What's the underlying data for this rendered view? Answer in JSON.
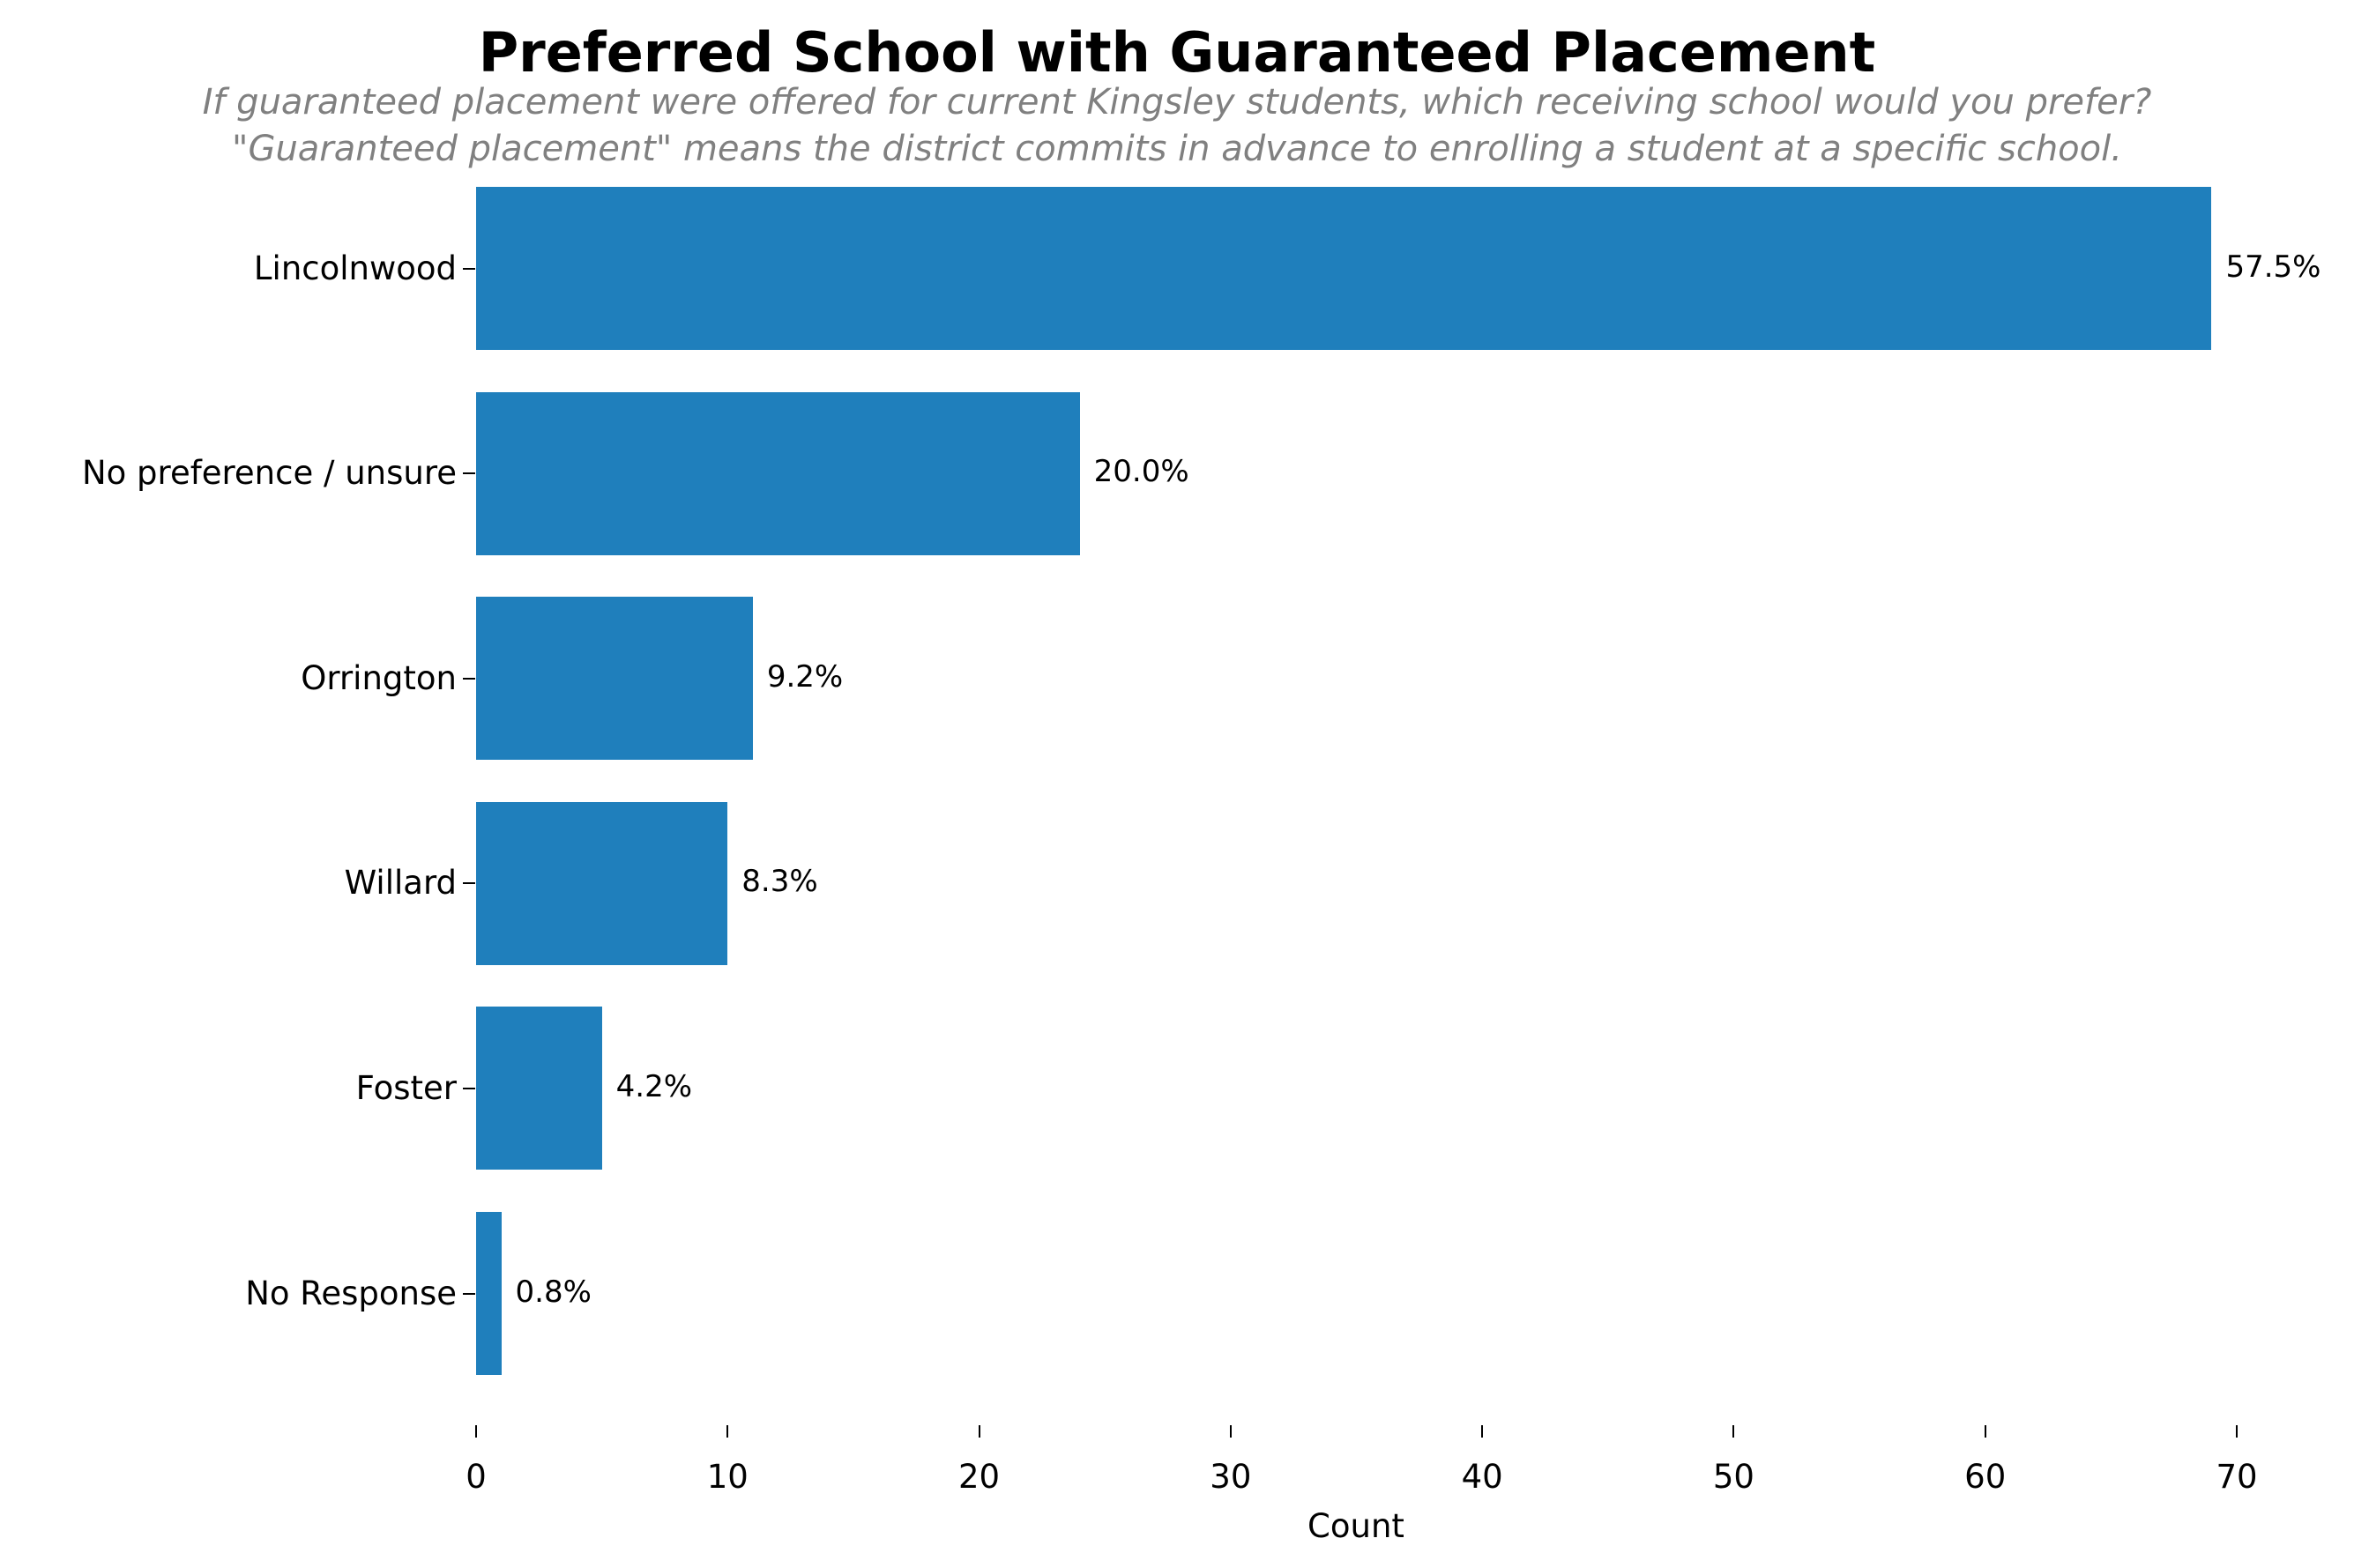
{
  "title": "Preferred School with Guaranteed Placement",
  "subtitle_lines": [
    "If guaranteed placement were offered for current Kingsley students, which receiving school would you prefer?",
    "\"Guaranteed placement\" means the district commits in advance to enrolling a student at a specific school."
  ],
  "colors": {
    "bar": "#1f7fbc",
    "subtitle": "#808080"
  },
  "chart_data": {
    "type": "bar",
    "orientation": "horizontal",
    "title": "Preferred School with Guaranteed Placement",
    "subtitle": "If guaranteed placement were offered for current Kingsley students, which receiving school would you prefer? \"Guaranteed placement\" means the district commits in advance to enrolling a student at a specific school.",
    "categories": [
      "Lincolnwood",
      "No preference / unsure",
      "Orrington",
      "Willard",
      "Foster",
      "No Response"
    ],
    "values": [
      69,
      24,
      11,
      10,
      5,
      1
    ],
    "percent_labels": [
      "57.5%",
      "20.0%",
      "9.2%",
      "8.3%",
      "4.2%",
      "0.8%"
    ],
    "xlabel": "Count",
    "ylabel": "",
    "xlim": [
      0,
      70
    ],
    "xticks": [
      "0",
      "10",
      "20",
      "30",
      "40",
      "50",
      "60",
      "70"
    ],
    "grid": false,
    "legend": null
  }
}
